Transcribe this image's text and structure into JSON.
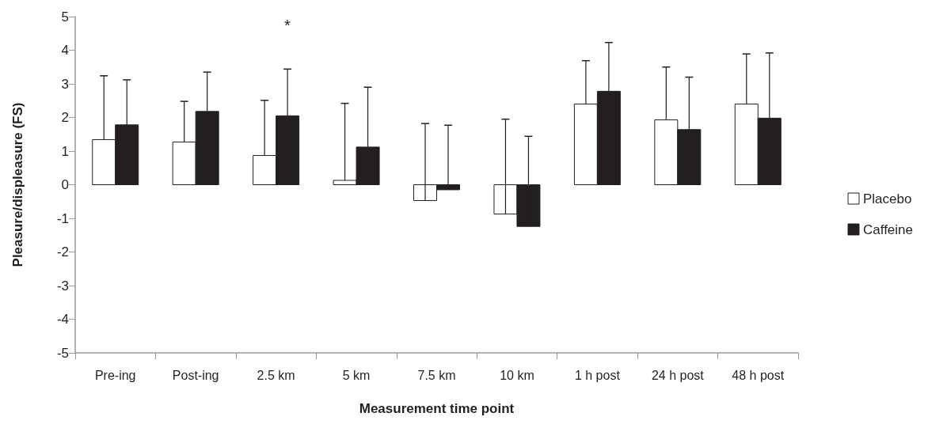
{
  "chart_data": {
    "type": "bar",
    "xlabel": "Measurement time point",
    "ylabel": "Pleasure/displeasure (FS)",
    "categories": [
      "Pre-ing",
      "Post-ing",
      "2.5 km",
      "5 km",
      "7.5 km",
      "10 km",
      "1 h post",
      "24 h post",
      "48 h post"
    ],
    "series": [
      {
        "name": "Placebo",
        "color": "#ffffff",
        "values": [
          1.34,
          1.27,
          0.87,
          0.13,
          -0.47,
          -0.87,
          2.4,
          1.93,
          2.4
        ],
        "errors": [
          [
            1.34,
            3.24
          ],
          [
            1.27,
            2.48
          ],
          [
            0.87,
            2.51
          ],
          [
            0.13,
            2.42
          ],
          [
            -0.47,
            1.82
          ],
          [
            -0.87,
            1.95
          ],
          [
            2.4,
            3.69
          ],
          [
            1.93,
            3.5
          ],
          [
            2.4,
            3.89
          ]
        ]
      },
      {
        "name": "Caffeine",
        "color": "#231f20",
        "values": [
          1.78,
          2.18,
          2.05,
          1.12,
          -0.15,
          -1.24,
          2.78,
          1.64,
          1.98
        ],
        "errors": [
          [
            1.78,
            3.12
          ],
          [
            2.18,
            3.35
          ],
          [
            2.05,
            3.44
          ],
          [
            1.12,
            2.9
          ],
          [
            -0.15,
            1.77
          ],
          [
            -1.24,
            1.44
          ],
          [
            2.78,
            4.23
          ],
          [
            1.64,
            3.2
          ],
          [
            1.98,
            3.92
          ]
        ]
      }
    ],
    "ylim": [
      -5,
      5
    ],
    "yticks": [
      -5,
      -4,
      -3,
      -2,
      -1,
      0,
      1,
      2,
      3,
      4,
      5
    ],
    "grid": false,
    "legend": "right",
    "annotations": [
      "*"
    ]
  }
}
